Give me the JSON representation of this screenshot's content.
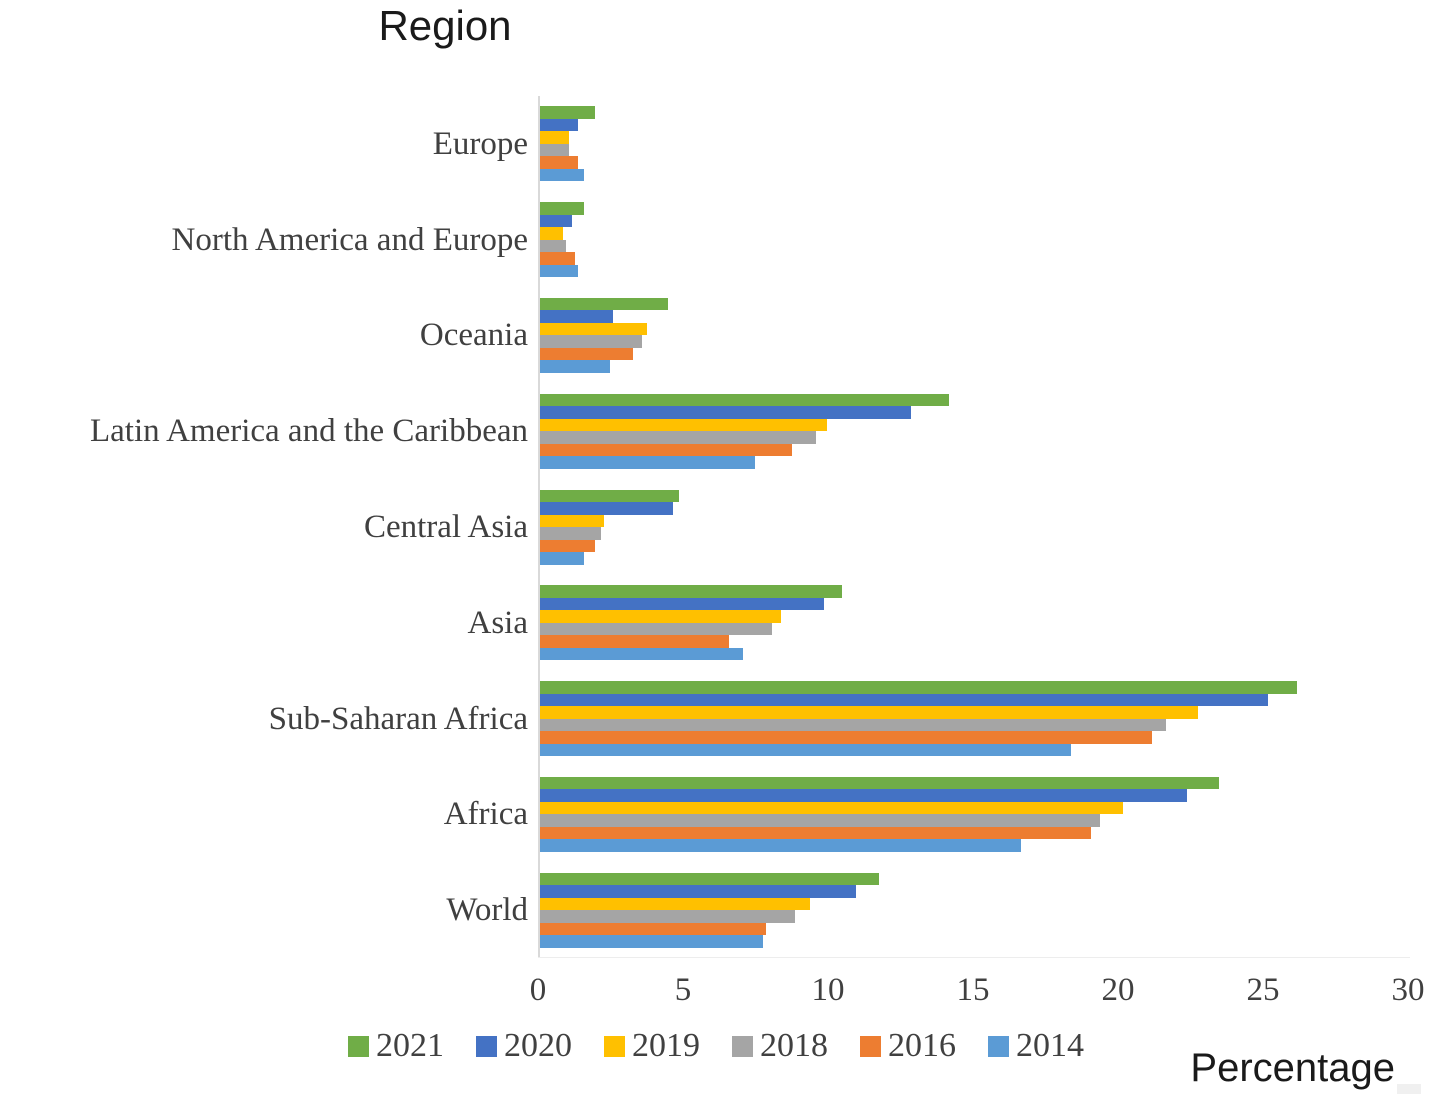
{
  "title": "Region",
  "xlabel": "Percentage",
  "accent_colors": {
    "green_2021": "#70AD47",
    "blue_2020": "#4472C4",
    "yellow_2019": "#FFC000",
    "gray_2018": "#A5A5A5",
    "orange_2016": "#ED7D31",
    "lightblue_2014": "#5B9BD5"
  },
  "chart_data": {
    "type": "bar",
    "orientation": "horizontal",
    "title": "Region",
    "xlabel": "Percentage",
    "ylabel": "",
    "xlim": [
      0,
      30
    ],
    "x_ticks": [
      0,
      5,
      10,
      15,
      20,
      25,
      30
    ],
    "grid": false,
    "legend_position": "bottom",
    "categories": [
      "Europe",
      "North America and Europe",
      "Oceania",
      "Latin America and the Caribbean",
      "Central Asia",
      "Asia",
      "Sub-Saharan Africa",
      "Africa",
      "World"
    ],
    "series": [
      {
        "name": "2021",
        "color": "#70AD47",
        "values": [
          1.9,
          1.5,
          4.4,
          14.1,
          4.8,
          10.4,
          26.1,
          23.4,
          11.7
        ]
      },
      {
        "name": "2020",
        "color": "#4472C4",
        "values": [
          1.3,
          1.1,
          2.5,
          12.8,
          4.6,
          9.8,
          25.1,
          22.3,
          10.9
        ]
      },
      {
        "name": "2019",
        "color": "#FFC000",
        "values": [
          1.0,
          0.8,
          3.7,
          9.9,
          2.2,
          8.3,
          22.7,
          20.1,
          9.3
        ]
      },
      {
        "name": "2018",
        "color": "#A5A5A5",
        "values": [
          1.0,
          0.9,
          3.5,
          9.5,
          2.1,
          8.0,
          21.6,
          19.3,
          8.8
        ]
      },
      {
        "name": "2016",
        "color": "#ED7D31",
        "values": [
          1.3,
          1.2,
          3.2,
          8.7,
          1.9,
          6.5,
          21.1,
          19.0,
          7.8
        ]
      },
      {
        "name": "2014",
        "color": "#5B9BD5",
        "values": [
          1.5,
          1.3,
          2.4,
          7.4,
          1.5,
          7.0,
          18.3,
          16.6,
          7.7
        ]
      }
    ]
  }
}
